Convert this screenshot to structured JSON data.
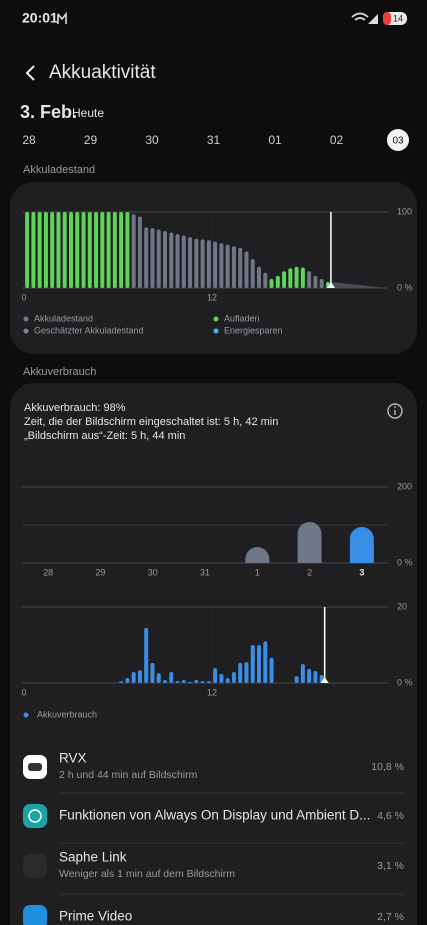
{
  "status": {
    "time": "20:01",
    "battery": "14"
  },
  "header": {
    "title": "Akkuaktivität"
  },
  "date": {
    "day": "3. Feb.",
    "label": "Heute"
  },
  "date_strip": [
    "28",
    "29",
    "30",
    "31",
    "01",
    "02",
    "03"
  ],
  "usage": {
    "section": "Akkuverbrauch",
    "lines": [
      "Akkuverbrauch: 98%",
      "Zeit, die der Bildschirm eingeschaltet ist: 5 h, 42 min",
      "„Bildschirm aus“-Zeit: 5 h, 44 min"
    ]
  },
  "chart_data": [
    {
      "type": "bar",
      "title": "Akkuladestand",
      "x": [
        0.2,
        0.6,
        1,
        1.4,
        1.8,
        2.2,
        2.6,
        3,
        3.4,
        3.8,
        4.2,
        4.6,
        5,
        5.4,
        5.8,
        6.2,
        6.6,
        7,
        7.4,
        7.8,
        8.2,
        8.6,
        9,
        9.4,
        9.8,
        10.2,
        10.6,
        11,
        11.4,
        11.8,
        12.2,
        12.6,
        13,
        13.4,
        13.8,
        14.2,
        14.6,
        15,
        15.4,
        15.8,
        16.2,
        16.6,
        17,
        17.4,
        17.8,
        18.2,
        18.6,
        19,
        19.4
      ],
      "series": [
        {
          "name": "Akkuladestand",
          "color": "#6e7687",
          "values": [
            null,
            null,
            null,
            null,
            null,
            null,
            null,
            null,
            null,
            null,
            null,
            null,
            null,
            null,
            null,
            null,
            null,
            97,
            94,
            80,
            79,
            77,
            75,
            73,
            71,
            69,
            67,
            65,
            64,
            63,
            61,
            59,
            57,
            55,
            53,
            48,
            38,
            28,
            20,
            null,
            null,
            null,
            null,
            null,
            null,
            22,
            16,
            12,
            null
          ]
        },
        {
          "name": "Aufladen",
          "color": "#5fd35a",
          "values": [
            100,
            100,
            100,
            100,
            100,
            100,
            100,
            100,
            100,
            100,
            100,
            100,
            100,
            100,
            100,
            100,
            100,
            null,
            null,
            null,
            null,
            null,
            null,
            null,
            null,
            null,
            null,
            null,
            null,
            null,
            null,
            null,
            null,
            null,
            null,
            null,
            null,
            null,
            null,
            12,
            16,
            22,
            26,
            28,
            27,
            null,
            null,
            null,
            8
          ]
        }
      ],
      "legend_extra": [
        {
          "name": "Geschätzter Akkuladestand",
          "color": "#7d8494"
        },
        {
          "name": "Energiesparen",
          "color": "#3fb2e8"
        }
      ],
      "xlim": [
        0,
        24
      ],
      "xticks": [
        0,
        12
      ],
      "ylim": [
        0,
        100
      ],
      "yticks": [
        {
          "value": 0,
          "label": "0 %"
        },
        100
      ]
    },
    {
      "type": "bar",
      "categories": [
        "28",
        "29",
        "30",
        "31",
        "1",
        "2",
        "3"
      ],
      "values": [
        null,
        null,
        null,
        null,
        42,
        108,
        95
      ],
      "colors": [
        "#6e7687",
        "#6e7687",
        "#6e7687",
        "#6e7687",
        "#6e7687",
        "#6e7687",
        "#3a8ee6"
      ],
      "ylim": [
        0,
        200
      ],
      "yticks": [
        {
          "value": 0,
          "label": "0 %"
        },
        200
      ]
    },
    {
      "type": "bar",
      "x": [
        6.2,
        6.6,
        7,
        7.4,
        7.8,
        8.2,
        8.6,
        9,
        9.4,
        9.8,
        10.2,
        10.6,
        11,
        11.4,
        11.8,
        12.2,
        12.6,
        13,
        13.4,
        13.8,
        14.2,
        14.6,
        15,
        15.4,
        15.8,
        17.4,
        17.8,
        18.2,
        18.6,
        19
      ],
      "series": [
        {
          "name": "Akkuverbrauch",
          "color": "#3a8ee6",
          "values": [
            0.5,
            1.3,
            2.9,
            3.4,
            14.5,
            5.3,
            2.6,
            0.8,
            2.9,
            0.5,
            0.8,
            0.3,
            0.8,
            0.5,
            0.5,
            3.9,
            2.4,
            1.3,
            2.9,
            5.3,
            5.5,
            10,
            10,
            11,
            6.6,
            1.8,
            5,
            3.7,
            3.2,
            2.1
          ]
        }
      ],
      "xlim": [
        0,
        24
      ],
      "xticks": [
        0,
        12
      ],
      "ylim": [
        0,
        20
      ],
      "yticks": [
        {
          "value": 0,
          "label": "0 %"
        },
        20
      ]
    }
  ],
  "apps": [
    {
      "name": "RVX",
      "detail": "2 h und 44 min auf Bildschirm",
      "share": "10,8 %"
    },
    {
      "name": "Funktionen von Always On Display und Ambient D...",
      "share": "4,6 %"
    },
    {
      "name": "Saphe Link",
      "detail": "Weniger als 1 min auf dem Bildschirm",
      "share": "3,1 %"
    },
    {
      "name": "Prime Video",
      "share": "2,7 %"
    }
  ]
}
